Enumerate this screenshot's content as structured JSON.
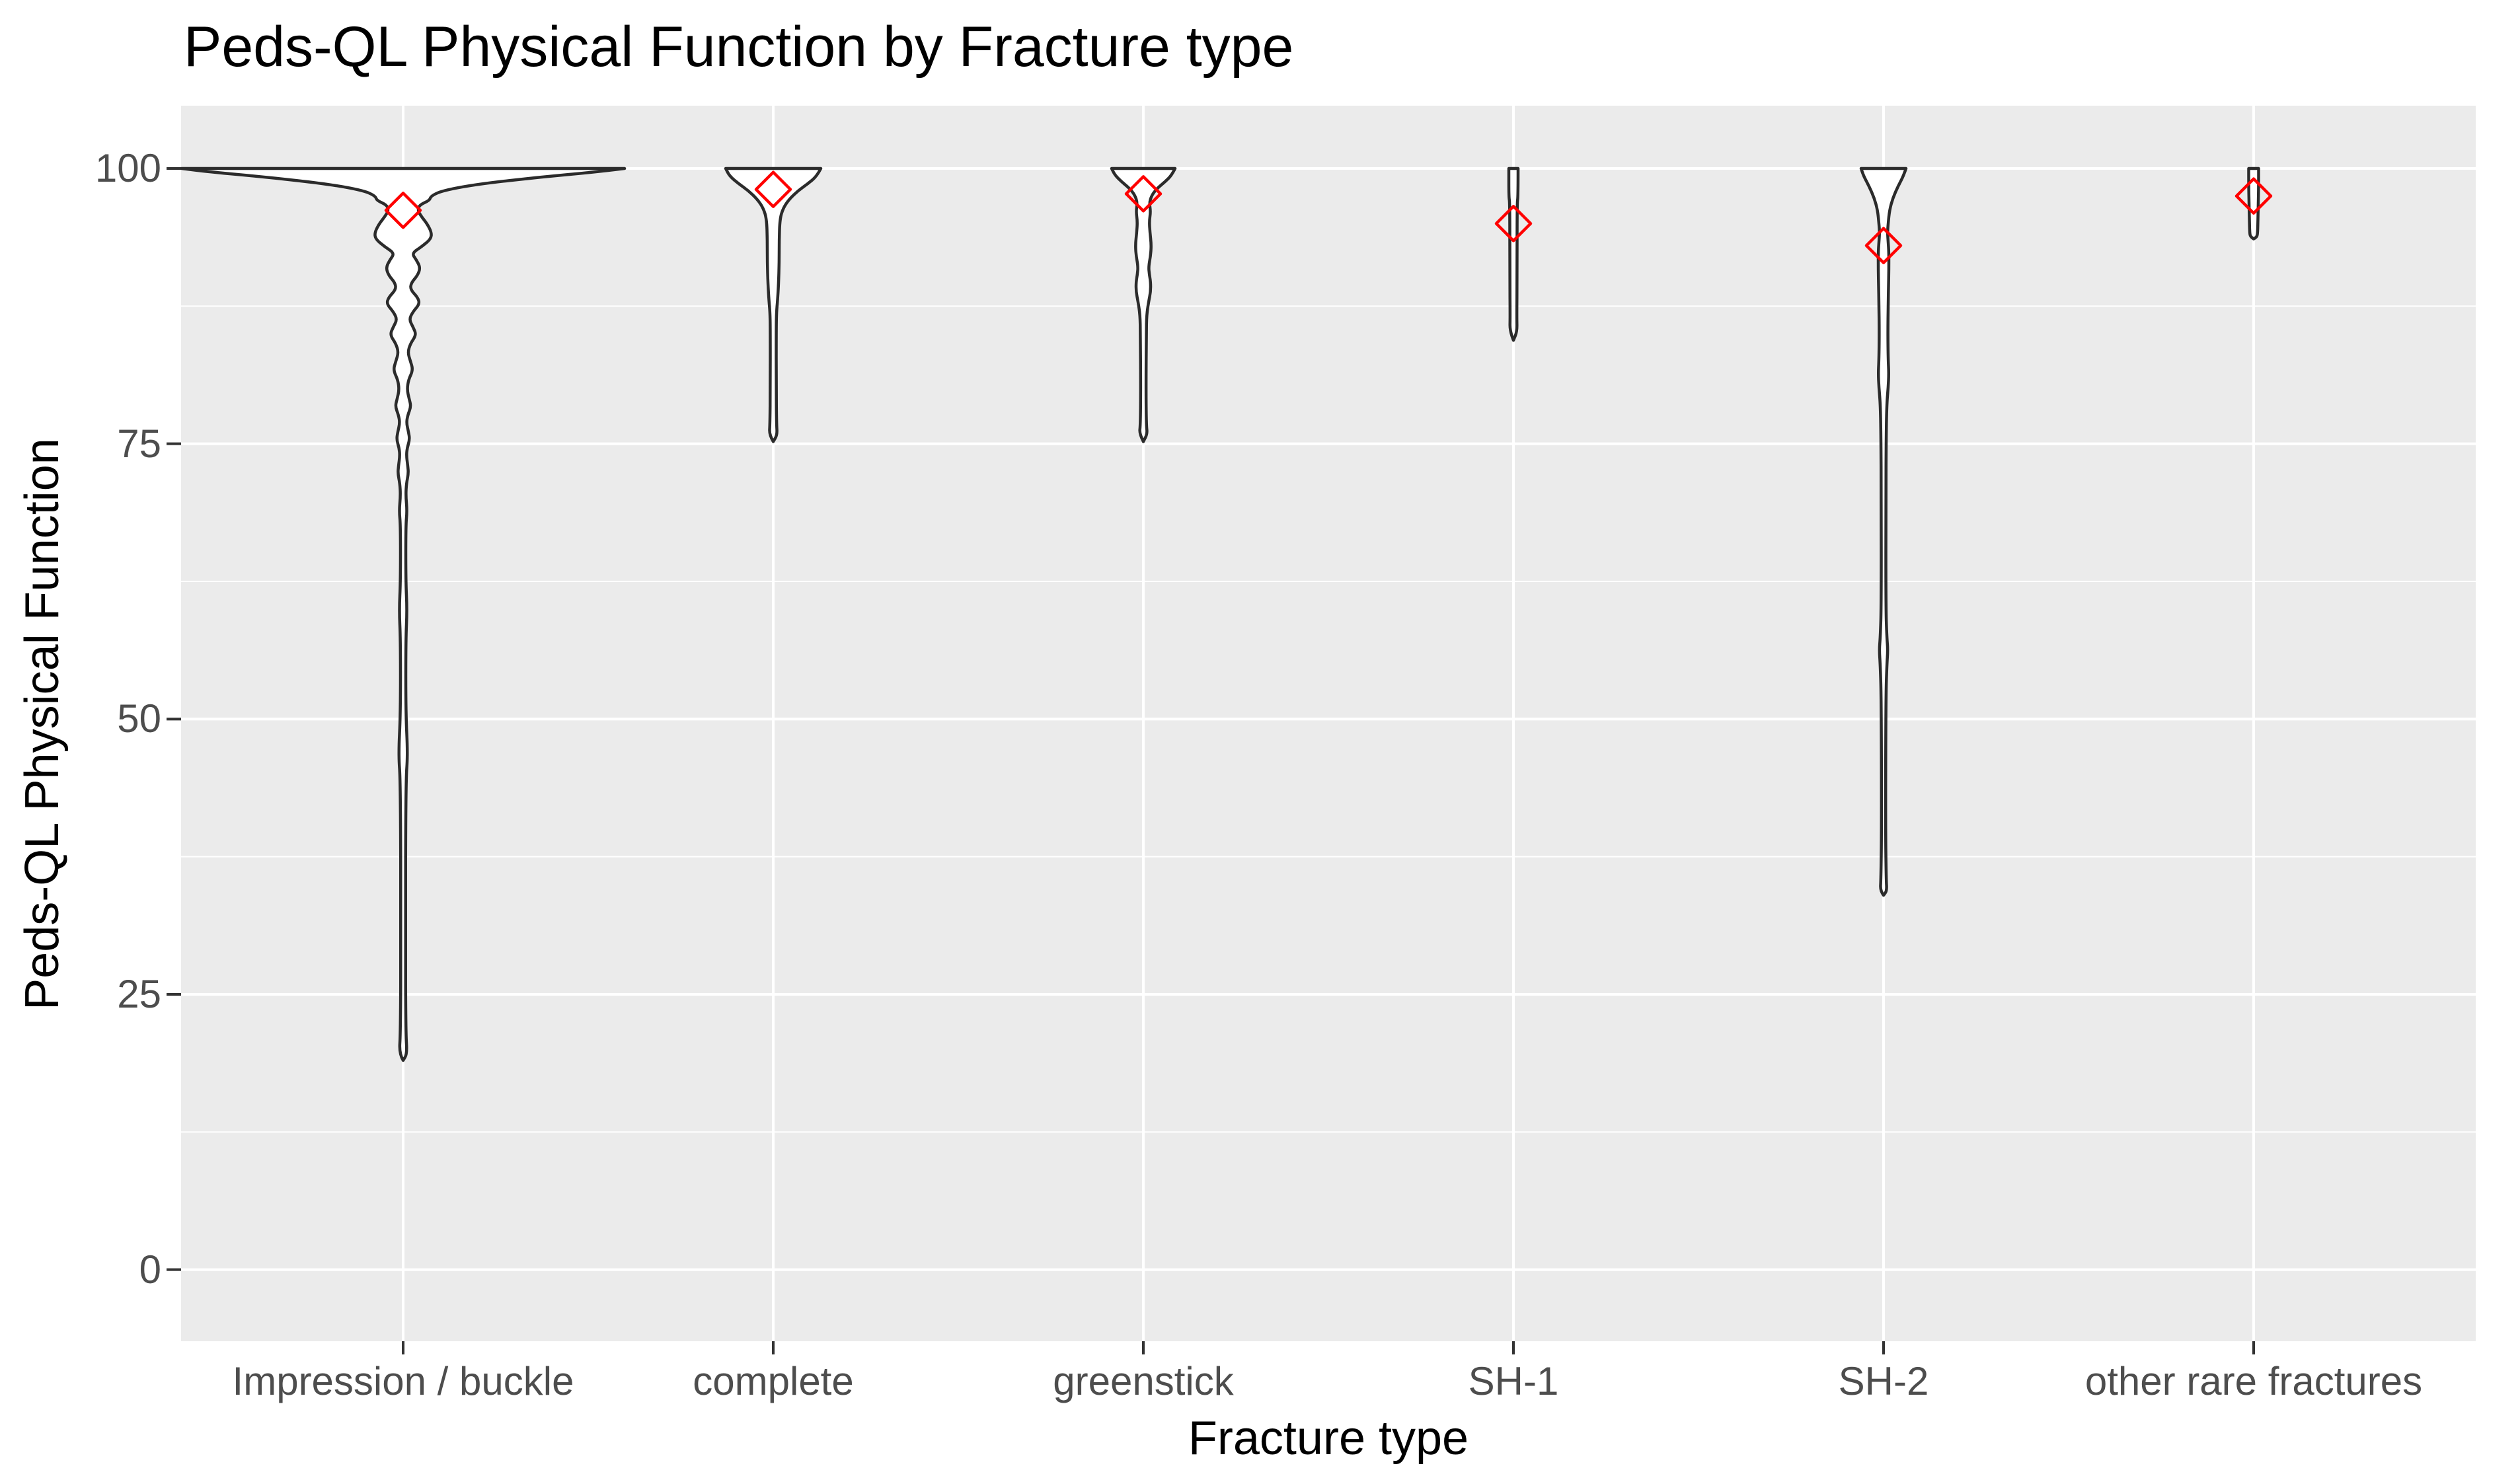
{
  "title": "Peds-QL Physical Function by Fracture type",
  "chart_data": {
    "type": "violin",
    "title": "Peds-QL Physical Function by Fracture type",
    "xlabel": "Fracture type",
    "ylabel": "Peds-QL Physical Function",
    "categories": [
      "Impression / buckle",
      "complete",
      "greenstick",
      "SH-1",
      "SH-2",
      "other rare fractures"
    ],
    "y_major_ticks": [
      0,
      25,
      50,
      75,
      100
    ],
    "y_minor_ticks": [
      12.5,
      37.5,
      62.5,
      87.5
    ],
    "ylim": [
      -6.5,
      105.7
    ],
    "grid": "major+minor, white on grey panel",
    "legend": false,
    "mean_marker": {
      "shape": "open-diamond",
      "color": "#FF0000",
      "half_size_px": 26
    },
    "colors": {
      "panel_bg": "#EBEBEB",
      "grid": "#FFFFFF",
      "violin_outline": "#2B2B2B",
      "violin_fill": "#FFFFFF",
      "axis_text": "#4D4D4D",
      "title_text": "#000000",
      "tick_mark": "#333333"
    },
    "series": [
      {
        "category": "Impression / buckle",
        "mean": 96.2,
        "min": 19,
        "max": 100,
        "profile": [
          [
            100,
            335
          ],
          [
            99.7,
            295
          ],
          [
            99.2,
            205
          ],
          [
            98.6,
            115
          ],
          [
            98.0,
            60
          ],
          [
            97.5,
            42
          ],
          [
            97.1,
            40
          ],
          [
            96.7,
            25
          ],
          [
            96.2,
            22
          ],
          [
            95.6,
            28
          ],
          [
            95.0,
            36
          ],
          [
            94.2,
            43
          ],
          [
            93.6,
            42
          ],
          [
            92.9,
            28
          ],
          [
            92.3,
            13
          ],
          [
            91.7,
            20
          ],
          [
            91.0,
            26
          ],
          [
            90.3,
            22
          ],
          [
            89.6,
            12
          ],
          [
            89.0,
            11
          ],
          [
            88.3,
            22
          ],
          [
            87.7,
            25
          ],
          [
            87.0,
            15
          ],
          [
            86.3,
            9
          ],
          [
            85.6,
            15
          ],
          [
            84.9,
            20
          ],
          [
            84.1,
            11
          ],
          [
            83.3,
            7
          ],
          [
            82.5,
            11
          ],
          [
            81.7,
            15
          ],
          [
            80.8,
            8
          ],
          [
            79.9,
            6
          ],
          [
            79.1,
            9
          ],
          [
            78.4,
            12
          ],
          [
            77.6,
            7
          ],
          [
            76.9,
            5
          ],
          [
            76.1,
            8
          ],
          [
            75.4,
            10
          ],
          [
            74.6,
            6
          ],
          [
            73.9,
            5
          ],
          [
            73.0,
            7
          ],
          [
            72.3,
            8
          ],
          [
            71.4,
            5
          ],
          [
            70.3,
            4
          ],
          [
            68.9,
            6
          ],
          [
            67.6,
            4
          ],
          [
            62.5,
            4
          ],
          [
            59.9,
            6
          ],
          [
            57.2,
            4
          ],
          [
            50.5,
            4
          ],
          [
            46.8,
            7
          ],
          [
            44.3,
            4
          ],
          [
            30.0,
            3.5
          ],
          [
            21.5,
            4
          ],
          [
            19.6,
            6
          ],
          [
            19.0,
            0
          ]
        ]
      },
      {
        "category": "complete",
        "mean": 98.1,
        "min": 75,
        "max": 100,
        "profile": [
          [
            100,
            72
          ],
          [
            99.3,
            66
          ],
          [
            98.6,
            52
          ],
          [
            98.0,
            38
          ],
          [
            97.2,
            24
          ],
          [
            96.4,
            15
          ],
          [
            95.4,
            10
          ],
          [
            93.5,
            9
          ],
          [
            91.5,
            9
          ],
          [
            89.5,
            8
          ],
          [
            88.0,
            6.5
          ],
          [
            87.0,
            5
          ],
          [
            85.5,
            4.5
          ],
          [
            80.0,
            4.5
          ],
          [
            76.8,
            5
          ],
          [
            75.8,
            6
          ],
          [
            75.2,
            0
          ]
        ]
      },
      {
        "category": "greenstick",
        "mean": 97.7,
        "min": 75,
        "max": 100,
        "profile": [
          [
            100,
            48
          ],
          [
            99.4,
            43
          ],
          [
            98.8,
            33
          ],
          [
            98.2,
            21
          ],
          [
            97.6,
            13
          ],
          [
            96.9,
            9
          ],
          [
            96.1,
            11
          ],
          [
            95.2,
            9
          ],
          [
            94.2,
            10
          ],
          [
            93.1,
            12
          ],
          [
            92.1,
            11
          ],
          [
            91.1,
            8
          ],
          [
            90.4,
            9
          ],
          [
            89.7,
            11
          ],
          [
            88.8,
            11
          ],
          [
            87.9,
            8
          ],
          [
            86.7,
            5
          ],
          [
            85.0,
            4.5
          ],
          [
            80.0,
            4
          ],
          [
            76.7,
            4.5
          ],
          [
            75.9,
            6
          ],
          [
            75.2,
            0
          ]
        ]
      },
      {
        "category": "SH-1",
        "mean": 95.0,
        "min": 84.5,
        "max": 100,
        "profile": [
          [
            100,
            7
          ],
          [
            97.4,
            7
          ],
          [
            96.9,
            5.5
          ],
          [
            90.0,
            5.5
          ],
          [
            86.5,
            5
          ],
          [
            85.2,
            5.5
          ],
          [
            84.4,
            0
          ]
        ]
      },
      {
        "category": "SH-2",
        "mean": 93.0,
        "min": 34,
        "max": 100,
        "profile": [
          [
            100,
            34
          ],
          [
            99.3,
            30
          ],
          [
            98.4,
            22
          ],
          [
            97.3,
            14
          ],
          [
            96.2,
            9
          ],
          [
            95.0,
            7
          ],
          [
            94.2,
            6
          ],
          [
            93.3,
            7
          ],
          [
            92.4,
            8
          ],
          [
            90.8,
            8
          ],
          [
            89.3,
            7.5
          ],
          [
            87.8,
            7
          ],
          [
            85.0,
            6.5
          ],
          [
            82.6,
            7
          ],
          [
            81.4,
            8
          ],
          [
            80.1,
            7
          ],
          [
            78.7,
            5
          ],
          [
            76.0,
            4
          ],
          [
            70.0,
            3.5
          ],
          [
            60.0,
            3.5
          ],
          [
            57.4,
            5
          ],
          [
            56.3,
            6.5
          ],
          [
            54.9,
            5
          ],
          [
            52.0,
            3.5
          ],
          [
            40.0,
            3
          ],
          [
            35.4,
            4
          ],
          [
            34.4,
            5
          ],
          [
            34.0,
            0
          ]
        ]
      },
      {
        "category": "other rare fractures",
        "mean": 97.5,
        "min": 93.6,
        "max": 100,
        "profile": [
          [
            100,
            7.5
          ],
          [
            98.4,
            7.5
          ],
          [
            96.9,
            7
          ],
          [
            95.4,
            6.5
          ],
          [
            94.2,
            6
          ],
          [
            93.8,
            5
          ],
          [
            93.6,
            0
          ]
        ]
      }
    ]
  }
}
